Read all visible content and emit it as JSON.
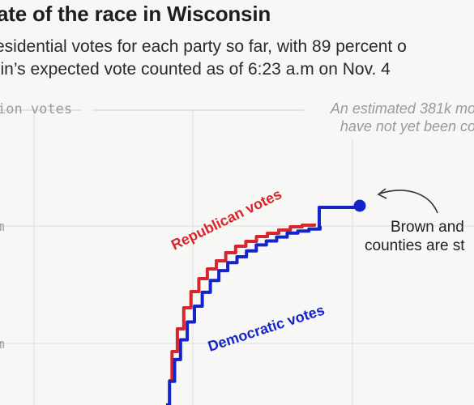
{
  "header": {
    "title": "ate of the race in Wisconsin",
    "subtitle_line1": "esidential votes for each party so far, with 89 percent o",
    "subtitle_line2": "sin’s expected vote counted as of 6:23 a.m on Nov. 4"
  },
  "chart_data": {
    "type": "line",
    "ylabel": "ion votes",
    "y_ticks": [
      "m",
      "m"
    ],
    "series": [
      {
        "name": "Republican votes",
        "color": "#d8262c",
        "values": [
          0.0,
          0.18,
          0.32,
          0.45,
          0.55,
          0.63,
          0.69,
          0.74,
          0.79,
          0.83,
          0.86,
          0.89,
          0.91,
          0.93,
          0.95,
          0.96,
          0.97
        ]
      },
      {
        "name": "Democratic votes",
        "color": "#1524c9",
        "values": [
          0.0,
          0.12,
          0.23,
          0.33,
          0.42,
          0.5,
          0.57,
          0.63,
          0.68,
          0.72,
          0.75,
          0.78,
          0.81,
          0.83,
          0.85,
          0.87,
          0.88,
          0.89,
          0.9,
          1.0
        ]
      }
    ],
    "notes": [
      "An estimated 381k mo",
      "have not yet been co"
    ],
    "annotation": [
      "Brown and",
      "counties are st"
    ],
    "grid": true
  }
}
